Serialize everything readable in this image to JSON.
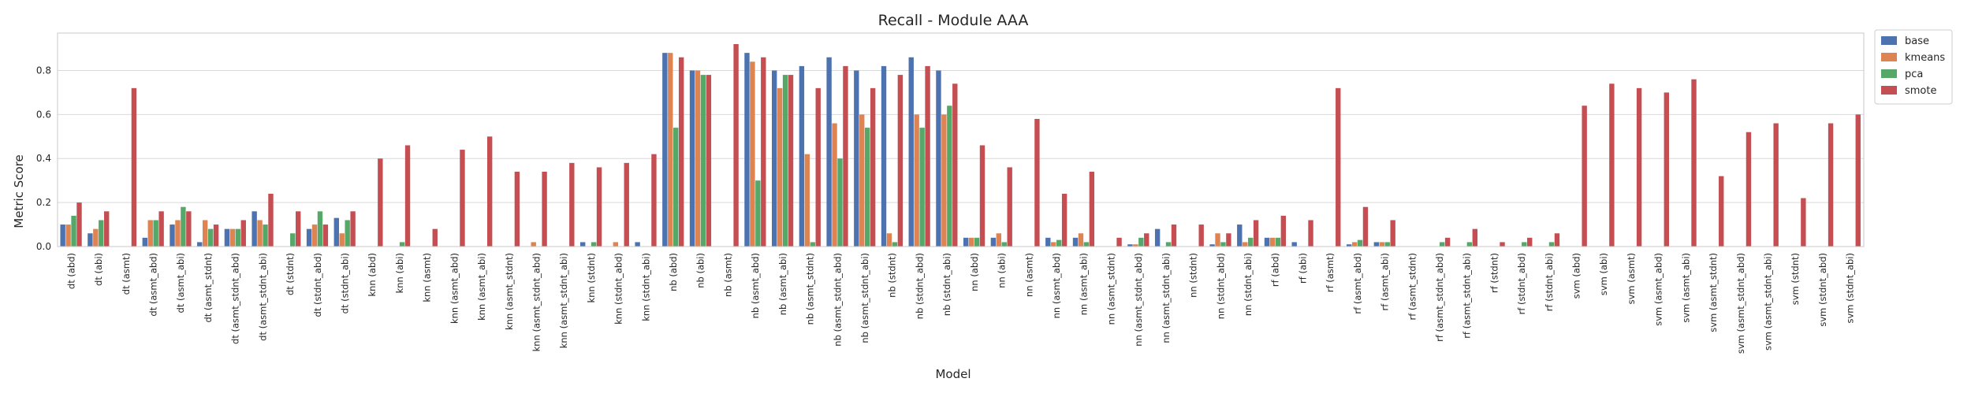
{
  "chart_data": {
    "type": "bar",
    "title": "Recall - Module AAA",
    "xlabel": "Model",
    "ylabel": "Metric Score",
    "ylim": [
      0,
      0.97
    ],
    "yticks": [
      0.0,
      0.2,
      0.4,
      0.6,
      0.8
    ],
    "ytick_labels": [
      "0.0",
      "0.2",
      "0.4",
      "0.6",
      "0.8"
    ],
    "grid": true,
    "legend_position": "outside-top-right",
    "categories": [
      "dt (abd)",
      "dt (abi)",
      "dt (asmt)",
      "dt (asmt_abd)",
      "dt (asmt_abi)",
      "dt (asmt_stdnt)",
      "dt (asmt_stdnt_abd)",
      "dt (asmt_stdnt_abi)",
      "dt (stdnt)",
      "dt (stdnt_abd)",
      "dt (stdnt_abi)",
      "knn (abd)",
      "knn (abi)",
      "knn (asmt)",
      "knn (asmt_abd)",
      "knn (asmt_abi)",
      "knn (asmt_stdnt)",
      "knn (asmt_stdnt_abd)",
      "knn (asmt_stdnt_abi)",
      "knn (stdnt)",
      "knn (stdnt_abd)",
      "knn (stdnt_abi)",
      "nb (abd)",
      "nb (abi)",
      "nb (asmt)",
      "nb (asmt_abd)",
      "nb (asmt_abi)",
      "nb (asmt_stdnt)",
      "nb (asmt_stdnt_abd)",
      "nb (asmt_stdnt_abi)",
      "nb (stdnt)",
      "nb (stdnt_abd)",
      "nb (stdnt_abi)",
      "nn (abd)",
      "nn (abi)",
      "nn (asmt)",
      "nn (asmt_abd)",
      "nn (asmt_abi)",
      "nn (asmt_stdnt)",
      "nn (asmt_stdnt_abd)",
      "nn (asmt_stdnt_abi)",
      "nn (stdnt)",
      "nn (stdnt_abd)",
      "nn (stdnt_abi)",
      "rf (abd)",
      "rf (abi)",
      "rf (asmt)",
      "rf (asmt_abd)",
      "rf (asmt_abi)",
      "rf (asmt_stdnt)",
      "rf (asmt_stdnt_abd)",
      "rf (asmt_stdnt_abi)",
      "rf (stdnt)",
      "rf (stdnt_abd)",
      "rf (stdnt_abi)",
      "svm (abd)",
      "svm (abi)",
      "svm (asmt)",
      "svm (asmt_abd)",
      "svm (asmt_abi)",
      "svm (asmt_stdnt)",
      "svm (asmt_stdnt_abd)",
      "svm (asmt_stdnt_abi)",
      "svm (stdnt)",
      "svm (stdnt_abd)",
      "svm (stdnt_abi)"
    ],
    "series": [
      {
        "name": "base",
        "color": "#4c72b0",
        "values": [
          0.1,
          0.06,
          0,
          0.04,
          0.1,
          0.02,
          0.08,
          0.16,
          0,
          0.08,
          0.13,
          0,
          0,
          0,
          0,
          0,
          0,
          0,
          0,
          0.02,
          0,
          0.02,
          0.88,
          0.8,
          0,
          0.88,
          0.8,
          0.82,
          0.86,
          0.8,
          0.82,
          0.86,
          0.8,
          0.04,
          0.04,
          0,
          0.04,
          0.04,
          0,
          0.01,
          0.08,
          0,
          0.01,
          0.1,
          0.04,
          0.02,
          0,
          0.01,
          0.02,
          0,
          0,
          0,
          0,
          0,
          0,
          0,
          0,
          0,
          0,
          0,
          0,
          0,
          0,
          0,
          0,
          0
        ]
      },
      {
        "name": "kmeans",
        "color": "#dd8452",
        "values": [
          0.1,
          0.08,
          0,
          0.12,
          0.12,
          0.12,
          0.08,
          0.12,
          0,
          0.1,
          0.06,
          0,
          0,
          0,
          0,
          0,
          0,
          0.02,
          0,
          0,
          0.02,
          0,
          0.88,
          0.8,
          0,
          0.84,
          0.72,
          0.42,
          0.56,
          0.6,
          0.06,
          0.6,
          0.6,
          0.04,
          0.06,
          0,
          0.02,
          0.06,
          0,
          0.01,
          0,
          0,
          0.06,
          0.02,
          0.04,
          0,
          0,
          0.02,
          0.02,
          0,
          0,
          0,
          0,
          0,
          0,
          0,
          0,
          0,
          0,
          0,
          0,
          0,
          0,
          0,
          0,
          0
        ]
      },
      {
        "name": "pca",
        "color": "#55a868",
        "values": [
          0.14,
          0.12,
          0,
          0.12,
          0.18,
          0.08,
          0.08,
          0.1,
          0.06,
          0.16,
          0.12,
          0,
          0.02,
          0,
          0,
          0,
          0,
          0,
          0,
          0.02,
          0,
          0,
          0.54,
          0.78,
          0,
          0.3,
          0.78,
          0.02,
          0.4,
          0.54,
          0.02,
          0.54,
          0.64,
          0.04,
          0.02,
          0,
          0.03,
          0.02,
          0,
          0.04,
          0.02,
          0,
          0.02,
          0.04,
          0.04,
          0,
          0,
          0.03,
          0.02,
          0,
          0.02,
          0.02,
          0,
          0.02,
          0.02,
          0,
          0,
          0,
          0,
          0,
          0,
          0,
          0,
          0,
          0,
          0
        ]
      },
      {
        "name": "smote",
        "color": "#c44e52",
        "values": [
          0.2,
          0.16,
          0.72,
          0.16,
          0.16,
          0.1,
          0.12,
          0.24,
          0.16,
          0.1,
          0.16,
          0.4,
          0.46,
          0.08,
          0.44,
          0.5,
          0.34,
          0.34,
          0.38,
          0.36,
          0.38,
          0.42,
          0.86,
          0.78,
          0.92,
          0.86,
          0.78,
          0.72,
          0.82,
          0.72,
          0.78,
          0.82,
          0.74,
          0.46,
          0.36,
          0.58,
          0.24,
          0.34,
          0.04,
          0.06,
          0.1,
          0.1,
          0.06,
          0.12,
          0.14,
          0.12,
          0.72,
          0.18,
          0.12,
          0,
          0.04,
          0.08,
          0.02,
          0.04,
          0.06,
          0.64,
          0.74,
          0.72,
          0.7,
          0.76,
          0.32,
          0.52,
          0.56,
          0.22,
          0.56,
          0.6
        ]
      }
    ]
  }
}
